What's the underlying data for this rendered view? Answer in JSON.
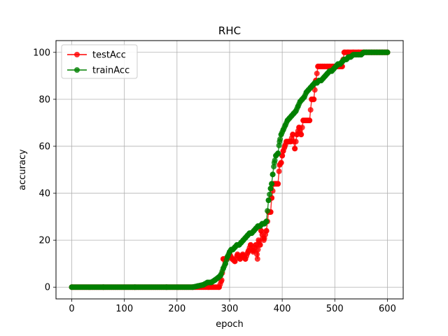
{
  "chart_data": {
    "type": "line",
    "title": "RHC",
    "xlabel": "epoch",
    "ylabel": "accuracy",
    "xlim": [
      -30,
      630
    ],
    "ylim": [
      -5,
      105
    ],
    "xticks": [
      0,
      100,
      200,
      300,
      400,
      500,
      600
    ],
    "yticks": [
      0,
      20,
      40,
      60,
      80,
      100
    ],
    "grid": true,
    "legend_position": "upper-left",
    "series": [
      {
        "name": "testAcc",
        "color": "#ff0000",
        "points": [
          [
            0,
            0
          ],
          [
            60,
            0
          ],
          [
            120,
            0
          ],
          [
            180,
            0
          ],
          [
            230,
            0
          ],
          [
            260,
            0
          ],
          [
            280,
            0
          ],
          [
            285,
            3
          ],
          [
            288,
            12
          ],
          [
            295,
            12
          ],
          [
            300,
            14
          ],
          [
            305,
            12
          ],
          [
            310,
            11
          ],
          [
            315,
            14
          ],
          [
            320,
            12
          ],
          [
            325,
            14
          ],
          [
            330,
            12
          ],
          [
            335,
            15
          ],
          [
            340,
            18
          ],
          [
            345,
            15
          ],
          [
            350,
            18
          ],
          [
            353,
            12
          ],
          [
            355,
            20
          ],
          [
            358,
            18
          ],
          [
            360,
            24
          ],
          [
            365,
            20
          ],
          [
            370,
            24
          ],
          [
            374,
            32
          ],
          [
            378,
            32
          ],
          [
            380,
            38
          ],
          [
            384,
            44
          ],
          [
            388,
            44
          ],
          [
            392,
            44
          ],
          [
            395,
            52
          ],
          [
            398,
            53
          ],
          [
            400,
            56
          ],
          [
            402,
            58
          ],
          [
            405,
            60
          ],
          [
            408,
            62
          ],
          [
            412,
            62
          ],
          [
            416,
            62
          ],
          [
            420,
            65
          ],
          [
            424,
            59
          ],
          [
            428,
            65
          ],
          [
            432,
            68
          ],
          [
            436,
            65
          ],
          [
            440,
            71
          ],
          [
            444,
            71
          ],
          [
            448,
            71
          ],
          [
            452,
            71
          ],
          [
            456,
            80
          ],
          [
            460,
            80
          ],
          [
            464,
            88
          ],
          [
            468,
            94
          ],
          [
            472,
            94
          ],
          [
            476,
            94
          ],
          [
            480,
            94
          ],
          [
            486,
            94
          ],
          [
            490,
            94
          ],
          [
            495,
            94
          ],
          [
            500,
            94
          ],
          [
            505,
            94
          ],
          [
            510,
            94
          ],
          [
            514,
            94
          ],
          [
            518,
            100
          ],
          [
            525,
            100
          ],
          [
            535,
            100
          ],
          [
            545,
            100
          ],
          [
            555,
            100
          ],
          [
            565,
            100
          ],
          [
            575,
            100
          ],
          [
            585,
            100
          ],
          [
            595,
            100
          ],
          [
            600,
            100
          ]
        ]
      },
      {
        "name": "trainAcc",
        "color": "#008000",
        "points": [
          [
            0,
            0
          ],
          [
            60,
            0
          ],
          [
            120,
            0
          ],
          [
            180,
            0
          ],
          [
            230,
            0
          ],
          [
            240,
            0.5
          ],
          [
            250,
            1
          ],
          [
            258,
            2
          ],
          [
            265,
            2
          ],
          [
            272,
            3
          ],
          [
            278,
            4
          ],
          [
            283,
            5
          ],
          [
            288,
            8
          ],
          [
            292,
            10
          ],
          [
            296,
            13
          ],
          [
            300,
            15
          ],
          [
            303,
            16
          ],
          [
            306,
            16
          ],
          [
            310,
            17
          ],
          [
            314,
            18
          ],
          [
            318,
            18
          ],
          [
            322,
            19
          ],
          [
            326,
            20
          ],
          [
            330,
            21
          ],
          [
            334,
            22
          ],
          [
            338,
            23
          ],
          [
            342,
            23
          ],
          [
            346,
            24
          ],
          [
            350,
            25
          ],
          [
            354,
            26
          ],
          [
            358,
            26
          ],
          [
            362,
            27
          ],
          [
            366,
            27
          ],
          [
            370,
            28
          ],
          [
            374,
            37
          ],
          [
            378,
            42
          ],
          [
            380,
            44
          ],
          [
            382,
            48
          ],
          [
            385,
            53
          ],
          [
            388,
            56
          ],
          [
            392,
            57
          ],
          [
            395,
            62
          ],
          [
            398,
            65
          ],
          [
            402,
            67
          ],
          [
            406,
            69
          ],
          [
            410,
            71
          ],
          [
            414,
            72
          ],
          [
            418,
            73
          ],
          [
            422,
            74
          ],
          [
            426,
            75
          ],
          [
            430,
            77
          ],
          [
            434,
            79
          ],
          [
            438,
            80
          ],
          [
            442,
            81
          ],
          [
            446,
            83
          ],
          [
            450,
            84
          ],
          [
            454,
            85
          ],
          [
            458,
            86
          ],
          [
            462,
            87
          ],
          [
            466,
            87
          ],
          [
            470,
            88
          ],
          [
            474,
            88
          ],
          [
            478,
            89
          ],
          [
            482,
            90
          ],
          [
            486,
            91
          ],
          [
            490,
            92
          ],
          [
            494,
            92
          ],
          [
            498,
            93
          ],
          [
            502,
            94
          ],
          [
            506,
            95
          ],
          [
            510,
            95
          ],
          [
            514,
            96
          ],
          [
            518,
            97
          ],
          [
            522,
            97
          ],
          [
            526,
            98
          ],
          [
            530,
            98
          ],
          [
            535,
            99
          ],
          [
            540,
            99
          ],
          [
            545,
            99
          ],
          [
            550,
            99
          ],
          [
            555,
            100
          ],
          [
            560,
            100
          ],
          [
            570,
            100
          ],
          [
            580,
            100
          ],
          [
            590,
            100
          ],
          [
            600,
            100
          ]
        ]
      }
    ]
  }
}
